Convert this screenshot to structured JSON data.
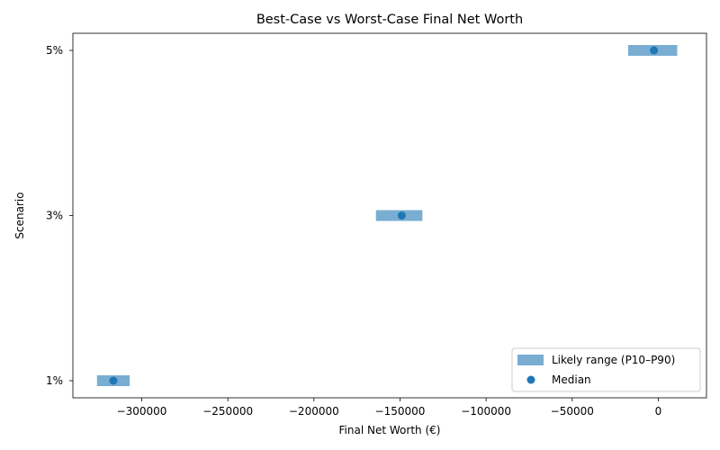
{
  "chart_data": {
    "type": "range",
    "title": "Best-Case vs Worst-Case Final Net Worth",
    "xlabel": "Final Net Worth (€)",
    "ylabel": "Scenario",
    "categories": [
      "1%",
      "3%",
      "5%"
    ],
    "series": [
      {
        "name": "Likely range (P10–P90)",
        "low": [
          -326000,
          -164000,
          -17500
        ],
        "high": [
          -307000,
          -137000,
          11000
        ]
      },
      {
        "name": "Median",
        "values": [
          -316500,
          -149000,
          -2500
        ]
      }
    ],
    "xlim": [
      -340000,
      28000
    ],
    "xticks": [
      -300000,
      -250000,
      -200000,
      -150000,
      -100000,
      -50000,
      0
    ],
    "xtick_labels": [
      "−300000",
      "−250000",
      "−200000",
      "−150000",
      "−100000",
      "−50000",
      "0"
    ],
    "colors": {
      "range": "#1f77b4",
      "median": "#1f77b4"
    },
    "grid": false,
    "legend_position": "lower-right"
  }
}
